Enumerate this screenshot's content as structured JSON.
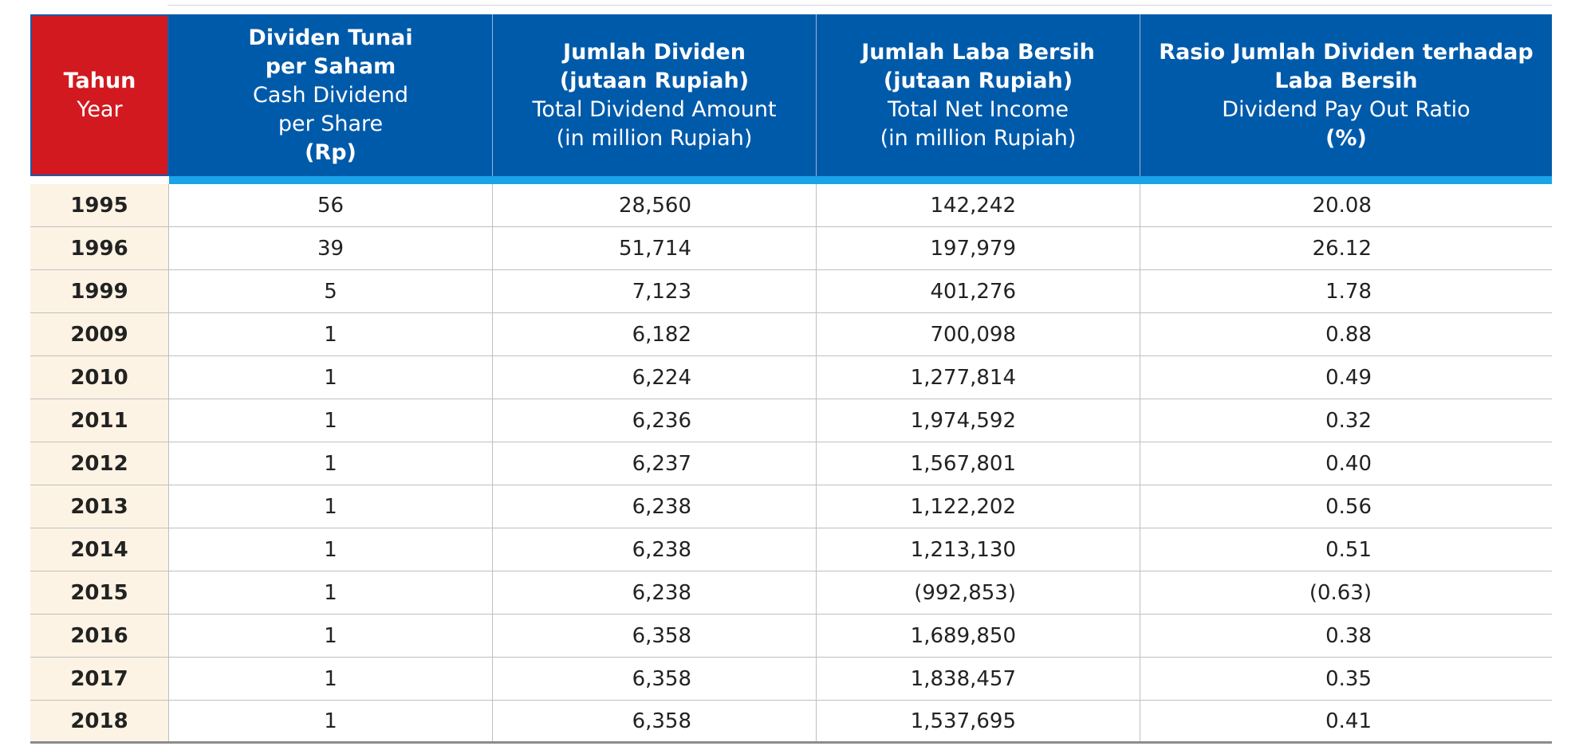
{
  "headers": {
    "year": {
      "bold": "Tahun",
      "normal": "Year"
    },
    "cash_dividend": {
      "bold1": "Dividen Tunai",
      "bold2": "per Saham",
      "normal1": "Cash Dividend",
      "normal2": "per Share",
      "unit": "(Rp)"
    },
    "total_dividend": {
      "bold1": "Jumlah Dividen",
      "bold2": "(jutaan Rupiah)",
      "normal1": "Total Dividend Amount",
      "normal2": "(in million Rupiah)"
    },
    "net_income": {
      "bold1": "Jumlah Laba Bersih",
      "bold2": "(jutaan Rupiah)",
      "normal1": "Total Net Income",
      "normal2": "(in million Rupiah)"
    },
    "payout_ratio": {
      "bold1": "Rasio Jumlah Dividen terhadap",
      "bold2": "Laba Bersih",
      "normal1": "Dividend Pay Out Ratio",
      "unit": "(%)"
    }
  },
  "rows": [
    {
      "year": "1995",
      "dps": "56",
      "total": "28,560",
      "net": "142,242",
      "ratio": "20.08"
    },
    {
      "year": "1996",
      "dps": "39",
      "total": "51,714",
      "net": "197,979",
      "ratio": "26.12"
    },
    {
      "year": "1999",
      "dps": "5",
      "total": "7,123",
      "net": "401,276",
      "ratio": "1.78"
    },
    {
      "year": "2009",
      "dps": "1",
      "total": "6,182",
      "net": "700,098",
      "ratio": "0.88"
    },
    {
      "year": "2010",
      "dps": "1",
      "total": "6,224",
      "net": "1,277,814",
      "ratio": "0.49"
    },
    {
      "year": "2011",
      "dps": "1",
      "total": "6,236",
      "net": "1,974,592",
      "ratio": "0.32"
    },
    {
      "year": "2012",
      "dps": "1",
      "total": "6,237",
      "net": "1,567,801",
      "ratio": "0.40"
    },
    {
      "year": "2013",
      "dps": "1",
      "total": "6,238",
      "net": "1,122,202",
      "ratio": "0.56"
    },
    {
      "year": "2014",
      "dps": "1",
      "total": "6,238",
      "net": "1,213,130",
      "ratio": "0.51"
    },
    {
      "year": "2015",
      "dps": "1",
      "total": "6,238",
      "net": "(992,853)",
      "ratio": "(0.63)"
    },
    {
      "year": "2016",
      "dps": "1",
      "total": "6,358",
      "net": "1,689,850",
      "ratio": "0.38"
    },
    {
      "year": "2017",
      "dps": "1",
      "total": "6,358",
      "net": "1,838,457",
      "ratio": "0.35"
    },
    {
      "year": "2018",
      "dps": "1",
      "total": "6,358",
      "net": "1,537,695",
      "ratio": "0.41"
    }
  ],
  "colors": {
    "header_blue": "#005aaa",
    "year_red": "#d2191f",
    "stripe_blue": "#1aa3e8",
    "year_bg": "#fdf3e4"
  }
}
